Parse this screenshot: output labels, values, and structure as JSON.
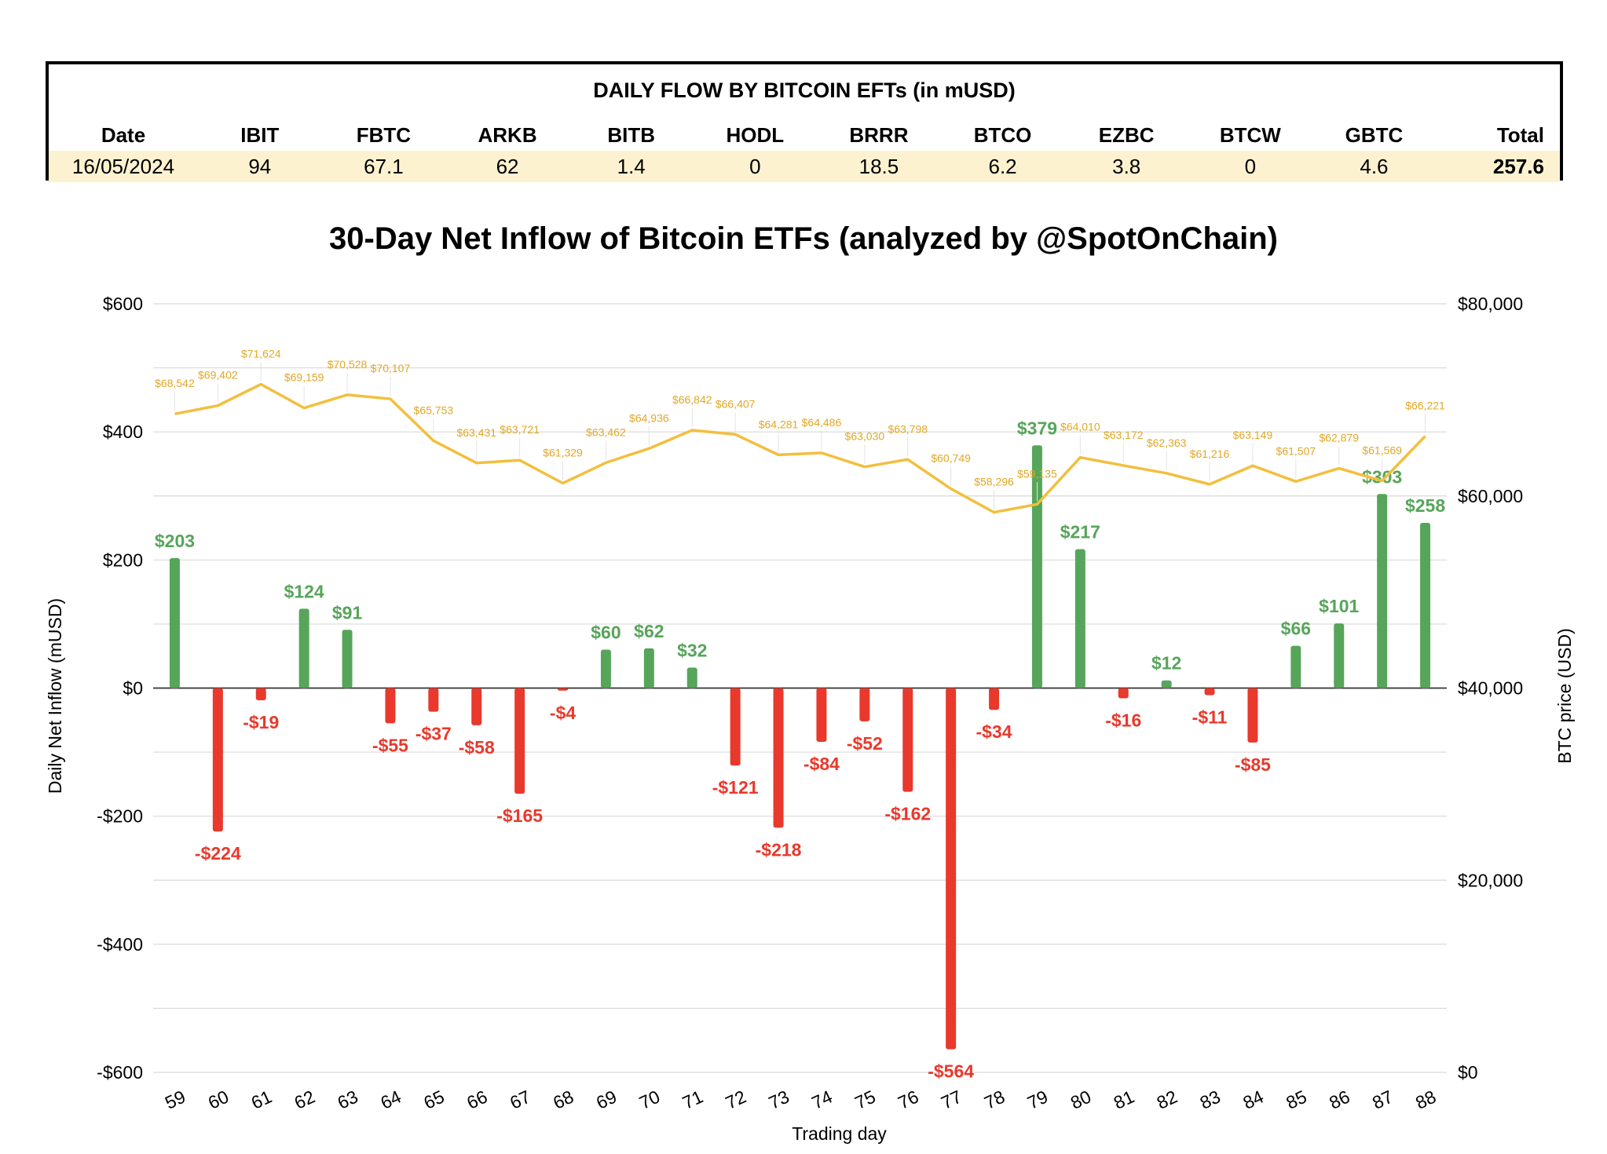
{
  "table": {
    "title": "DAILY FLOW BY BITCOIN EFTs (in mUSD)",
    "headers": [
      "Date",
      "IBIT",
      "FBTC",
      "ARKB",
      "BITB",
      "HODL",
      "BRRR",
      "BTCO",
      "EZBC",
      "BTCW",
      "GBTC",
      "Total"
    ],
    "row": [
      "16/05/2024",
      "94",
      "67.1",
      "62",
      "1.4",
      "0",
      "18.5",
      "6.2",
      "3.8",
      "0",
      "4.6",
      "257.6"
    ]
  },
  "chart_data": {
    "type": "bar",
    "title": "30-Day Net Inflow of Bitcoin ETFs (analyzed by @SpotOnChain)",
    "xlabel": "Trading day",
    "ylabel": "Daily Net Inflow (mUSD)",
    "y2label": "BTC price (USD)",
    "ylim": [
      -600,
      600
    ],
    "y2lim": [
      0,
      80000
    ],
    "yticks": [
      "$600",
      "$400",
      "$200",
      "$0",
      "-$200",
      "-$400",
      "-$600"
    ],
    "y2ticks": [
      "$80,000",
      "$60,000",
      "$40,000",
      "$20,000",
      "$0"
    ],
    "categories": [
      "59",
      "60",
      "61",
      "62",
      "63",
      "64",
      "65",
      "66",
      "67",
      "68",
      "69",
      "70",
      "71",
      "72",
      "73",
      "74",
      "75",
      "76",
      "77",
      "78",
      "79",
      "80",
      "81",
      "82",
      "83",
      "84",
      "85",
      "86",
      "87",
      "88"
    ],
    "inflow": [
      203,
      -224,
      -19,
      124,
      91,
      -55,
      -37,
      -58,
      -165,
      -4,
      60,
      62,
      32,
      -121,
      -218,
      -84,
      -52,
      -162,
      -564,
      -34,
      379,
      217,
      -16,
      12,
      -11,
      -85,
      66,
      101,
      303,
      258
    ],
    "inflow_labels": [
      "$203",
      "-$224",
      "-$19",
      "$124",
      "$91",
      "-$55",
      "-$37",
      "-$58",
      "-$165",
      "-$4",
      "$60",
      "$62",
      "$32",
      "-$121",
      "-$218",
      "-$84",
      "-$52",
      "-$162",
      "-$564",
      "-$34",
      "$379",
      "$217",
      "-$16",
      "$12",
      "-$11",
      "-$85",
      "$66",
      "$101",
      "$303",
      "$258"
    ],
    "btc_price": [
      68542,
      69402,
      71624,
      69159,
      70528,
      70107,
      65753,
      63431,
      63721,
      61329,
      63462,
      64936,
      66842,
      66407,
      64281,
      64486,
      63030,
      63798,
      60749,
      58296,
      59135,
      64010,
      63172,
      62363,
      61216,
      63149,
      61507,
      62879,
      61569,
      66221
    ],
    "btc_price_labels": [
      "$68,542",
      "$69,402",
      "$71,624",
      "$69,159",
      "$70,528",
      "$70,107",
      "$65,753",
      "$63,431",
      "$63,721",
      "$61,329",
      "$63,462",
      "$64,936",
      "$66,842",
      "$66,407",
      "$64,281",
      "$64,486",
      "$63,030",
      "$63,798",
      "$60,749",
      "$58,296",
      "$59,135",
      "$64,010",
      "$63,172",
      "$62,363",
      "$61,216",
      "$63,149",
      "$61,507",
      "$62,879",
      "$61,569",
      "$66,221"
    ],
    "colors": {
      "positive": "#57a55a",
      "negative": "#e8392c",
      "line": "#f2bf3e",
      "grid": "#d9d9d9"
    }
  }
}
